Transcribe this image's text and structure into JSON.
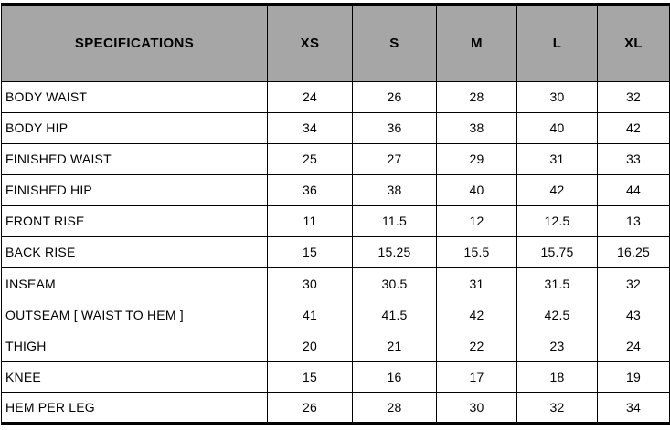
{
  "colors": {
    "header_bg": "#a6a6a6",
    "border": "#000000",
    "text": "#000000"
  },
  "table": {
    "header": [
      "SPECIFICATIONS",
      "XS",
      "S",
      "M",
      "L",
      "XL"
    ],
    "rows": [
      {
        "label": "BODY WAIST",
        "values": [
          "24",
          "26",
          "28",
          "30",
          "32"
        ]
      },
      {
        "label": "BODY HIP",
        "values": [
          "34",
          "36",
          "38",
          "40",
          "42"
        ]
      },
      {
        "label": "FINISHED WAIST",
        "values": [
          "25",
          "27",
          "29",
          "31",
          "33"
        ]
      },
      {
        "label": "FINISHED HIP",
        "values": [
          "36",
          "38",
          "40",
          "42",
          "44"
        ]
      },
      {
        "label": "FRONT RISE",
        "values": [
          "11",
          "11.5",
          "12",
          "12.5",
          "13"
        ]
      },
      {
        "label": "BACK RISE",
        "values": [
          "15",
          "15.25",
          "15.5",
          "15.75",
          "16.25"
        ]
      },
      {
        "label": "INSEAM",
        "values": [
          "30",
          "30.5",
          "31",
          "31.5",
          "32"
        ]
      },
      {
        "label": "OUTSEAM [ WAIST TO HEM ]",
        "values": [
          "41",
          "41.5",
          "42",
          "42.5",
          "43"
        ]
      },
      {
        "label": "THIGH",
        "values": [
          "20",
          "21",
          "22",
          "23",
          "24"
        ]
      },
      {
        "label": "KNEE",
        "values": [
          "15",
          "16",
          "17",
          "18",
          "19"
        ]
      },
      {
        "label": "HEM PER LEG",
        "values": [
          "26",
          "28",
          "30",
          "32",
          "34"
        ]
      }
    ]
  }
}
